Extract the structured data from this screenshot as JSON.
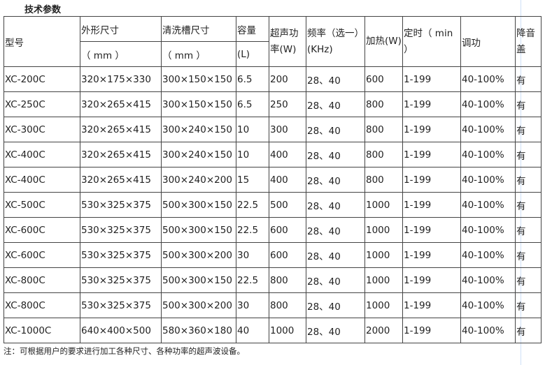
{
  "title": "技术参数",
  "headers": {
    "model": "型号",
    "outer_size": "外形尺寸",
    "outer_unit": "（ mm ）",
    "tank_size": "清洗槽尺寸",
    "tank_unit": "（ mm ）",
    "capacity": "容量",
    "capacity_unit": "(L)",
    "ultrasonic_power": "超声功率(W)",
    "frequency": "频率（选一）(KHz)",
    "heating": "加热(W)",
    "timer": "定时（ min ）",
    "power_adjust": "调功",
    "noise_cover": "降音盖"
  },
  "rows": [
    [
      "XC-200C",
      "320×175×330",
      "300×150×150",
      "6.5",
      "200",
      "28、40",
      "600",
      "1-199",
      "40-100%",
      "有"
    ],
    [
      "XC-250C",
      "320×265×415",
      "300×150×150",
      "6.5",
      "250",
      "28、40",
      "800",
      "1-199",
      "40-100%",
      "有"
    ],
    [
      "XC-300C",
      "320×265×415",
      "300×240×150",
      "10",
      "300",
      "28、40",
      "800",
      "1-199",
      "40-100%",
      "有"
    ],
    [
      "XC-400C",
      "320×265×415",
      "300×240×150",
      "10",
      "400",
      "28、40",
      "800",
      "1-199",
      "40-100%",
      "有"
    ],
    [
      "XC-400C",
      "320×265×415",
      "300×240×200",
      "15",
      "400",
      "28、40",
      "800",
      "1-199",
      "40-100%",
      "有"
    ],
    [
      "XC-500C",
      "530×325×375",
      "500×300×150",
      "22.5",
      "500",
      "28、40",
      "1000",
      "1-199",
      "40-100%",
      "有"
    ],
    [
      "XC-600C",
      "530×325×375",
      "500×300×150",
      "22.5",
      "600",
      "28、40",
      "1000",
      "1-199",
      "40-100%",
      "有"
    ],
    [
      "XC-600C",
      "530×325×375",
      "500×300×200",
      "30",
      "600",
      "28、40",
      "1000",
      "1-199",
      "40-100%",
      "有"
    ],
    [
      "XC-800C",
      "530×325×375",
      "500×300×150",
      "22.5",
      "800",
      "28、40",
      "1000",
      "1-199",
      "40-100%",
      "有"
    ],
    [
      "XC-800C",
      "530×325×375",
      "500×300×200",
      "30",
      "800",
      "28、40",
      "1000",
      "1-199",
      "40-100%",
      "有"
    ],
    [
      "XC-1000C",
      "640×400×500",
      "580×360×180",
      "40",
      "1000",
      "28、40",
      "2000",
      "1-199",
      "40-100%",
      "有"
    ]
  ],
  "note": "注：可根据用户的要求进行加工各种尺寸、各种功率的超声波设备。"
}
